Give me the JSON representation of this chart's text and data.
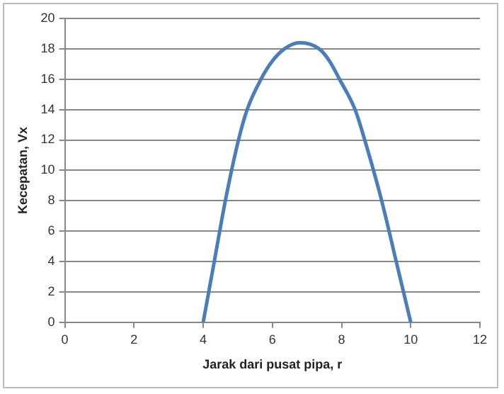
{
  "chart_data": {
    "type": "line",
    "xlabel": "Jarak dari pusat pipa, r",
    "ylabel": "Kecepatan, Vx",
    "series": [
      {
        "color": "#4a7ebb",
        "x": [
          4,
          4.32,
          4.64,
          5.02,
          5.27,
          5.67,
          6.0,
          6.35,
          6.79,
          7.35,
          7.65,
          7.94,
          8.39,
          8.67,
          9.16,
          9.58,
          10
        ],
        "values": [
          0,
          4,
          8,
          12,
          14,
          16,
          17.2,
          18,
          18.4,
          18,
          17.2,
          16,
          14,
          12,
          8,
          4,
          0
        ]
      }
    ],
    "xlim": [
      0,
      12
    ],
    "xticks": [
      0,
      2,
      4,
      6,
      8,
      10,
      12
    ],
    "ylim": [
      0,
      20
    ],
    "yticks": [
      0,
      2,
      4,
      6,
      8,
      10,
      12,
      14,
      16,
      18,
      20
    ],
    "grid": "y",
    "legend": false,
    "marker": "none",
    "line_style": "solid"
  }
}
